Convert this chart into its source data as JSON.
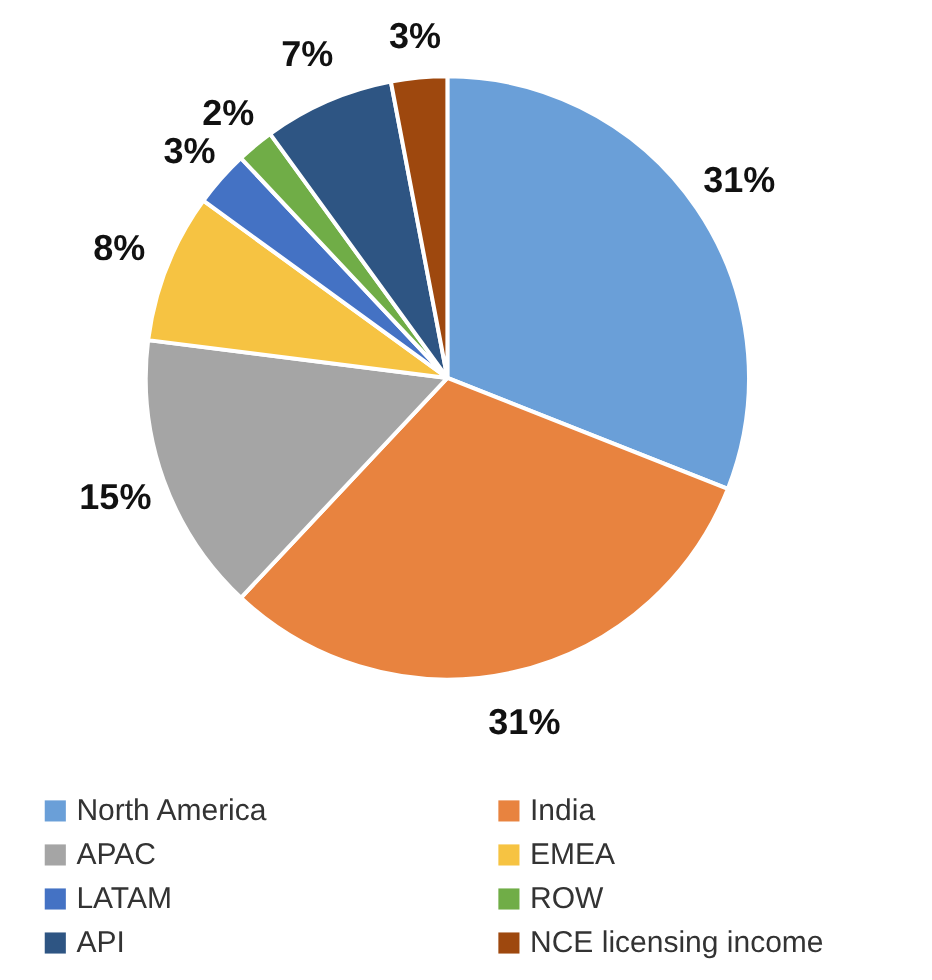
{
  "chart_data": {
    "type": "pie",
    "categories": [
      "North America",
      "India",
      "APAC",
      "EMEA",
      "LATAM",
      "ROW",
      "API",
      "NCE licensing income"
    ],
    "values": [
      31,
      31,
      15,
      8,
      3,
      2,
      7,
      3
    ],
    "colors": [
      "#6a9fd8",
      "#e8833f",
      "#a5a5a5",
      "#f6c342",
      "#4472c4",
      "#70ad47",
      "#2e5583",
      "#9e480e"
    ],
    "value_labels": [
      "31%",
      "31%",
      "15%",
      "8%",
      "3%",
      "2%",
      "7%",
      "3%"
    ],
    "legend": "bottom"
  }
}
